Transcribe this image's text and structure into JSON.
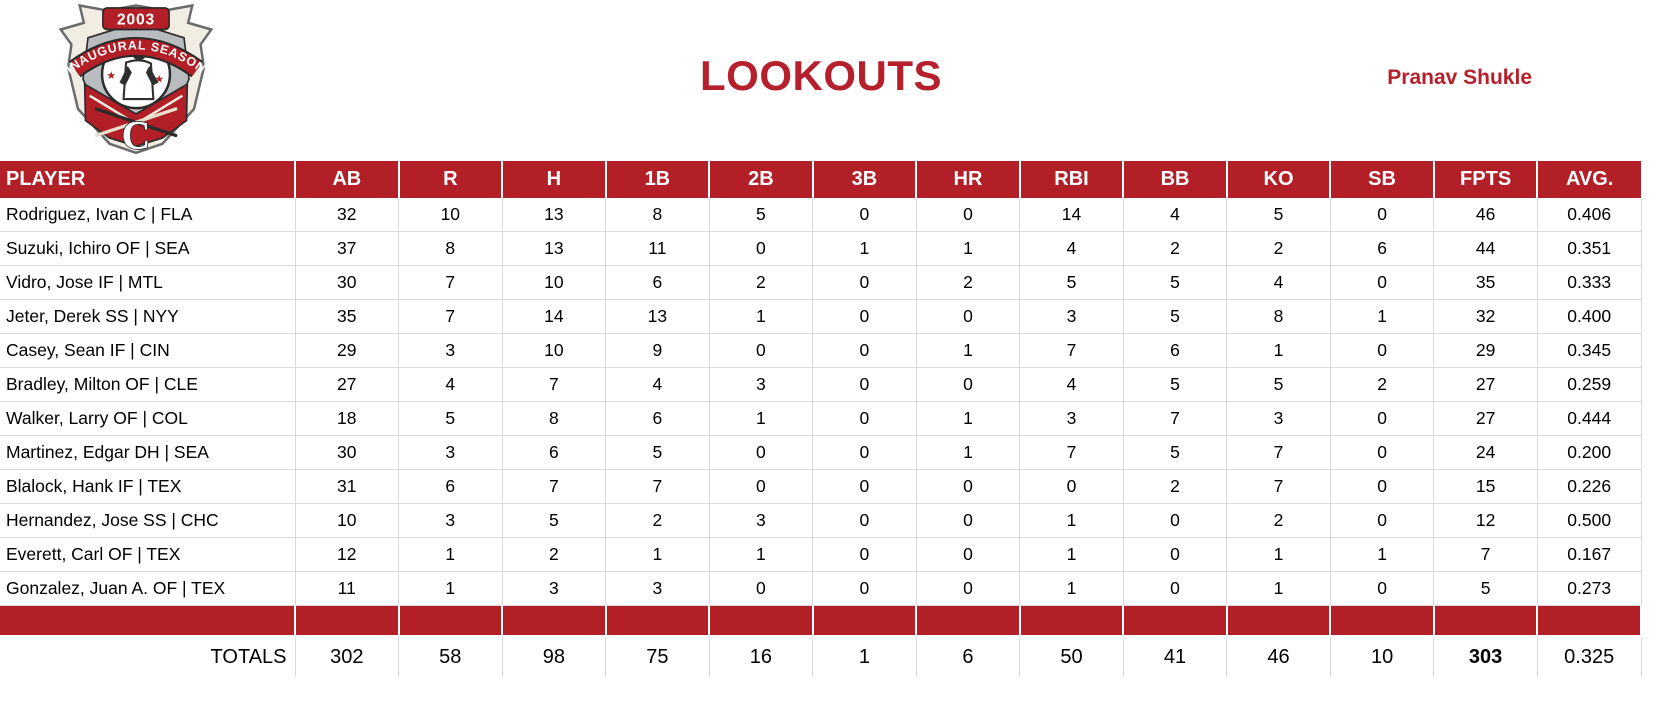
{
  "page": {
    "title": "LOOKOUTS",
    "owner": "Pranav Shukle"
  },
  "logo": {
    "year": "2003",
    "banner": "INAUGURAL SEASON",
    "letter": "C"
  },
  "colors": {
    "cell_red": "#b21f26",
    "title_red": "#b5202c",
    "grid_gray": "#d9d9d9"
  },
  "table": {
    "columns": [
      "PLAYER",
      "AB",
      "R",
      "H",
      "1B",
      "2B",
      "3B",
      "HR",
      "RBI",
      "BB",
      "KO",
      "SB",
      "FPTS",
      "AVG."
    ],
    "rows": [
      {
        "player": "Rodriguez, Ivan C | FLA",
        "stats": [
          "32",
          "10",
          "13",
          "8",
          "5",
          "0",
          "0",
          "14",
          "4",
          "5",
          "0",
          "46",
          "0.406"
        ]
      },
      {
        "player": "Suzuki, Ichiro OF | SEA",
        "stats": [
          "37",
          "8",
          "13",
          "11",
          "0",
          "1",
          "1",
          "4",
          "2",
          "2",
          "6",
          "44",
          "0.351"
        ]
      },
      {
        "player": "Vidro, Jose IF | MTL",
        "stats": [
          "30",
          "7",
          "10",
          "6",
          "2",
          "0",
          "2",
          "5",
          "5",
          "4",
          "0",
          "35",
          "0.333"
        ]
      },
      {
        "player": "Jeter, Derek SS | NYY",
        "stats": [
          "35",
          "7",
          "14",
          "13",
          "1",
          "0",
          "0",
          "3",
          "5",
          "8",
          "1",
          "32",
          "0.400"
        ]
      },
      {
        "player": "Casey, Sean IF | CIN",
        "stats": [
          "29",
          "3",
          "10",
          "9",
          "0",
          "0",
          "1",
          "7",
          "6",
          "1",
          "0",
          "29",
          "0.345"
        ]
      },
      {
        "player": "Bradley, Milton OF | CLE",
        "stats": [
          "27",
          "4",
          "7",
          "4",
          "3",
          "0",
          "0",
          "4",
          "5",
          "5",
          "2",
          "27",
          "0.259"
        ]
      },
      {
        "player": "Walker, Larry OF | COL",
        "stats": [
          "18",
          "5",
          "8",
          "6",
          "1",
          "0",
          "1",
          "3",
          "7",
          "3",
          "0",
          "27",
          "0.444"
        ]
      },
      {
        "player": "Martinez, Edgar DH | SEA",
        "stats": [
          "30",
          "3",
          "6",
          "5",
          "0",
          "0",
          "1",
          "7",
          "5",
          "7",
          "0",
          "24",
          "0.200"
        ]
      },
      {
        "player": "Blalock, Hank IF | TEX",
        "stats": [
          "31",
          "6",
          "7",
          "7",
          "0",
          "0",
          "0",
          "0",
          "2",
          "7",
          "0",
          "15",
          "0.226"
        ]
      },
      {
        "player": "Hernandez, Jose SS | CHC",
        "stats": [
          "10",
          "3",
          "5",
          "2",
          "3",
          "0",
          "0",
          "1",
          "0",
          "2",
          "0",
          "12",
          "0.500"
        ]
      },
      {
        "player": "Everett, Carl OF | TEX",
        "stats": [
          "12",
          "1",
          "2",
          "1",
          "1",
          "0",
          "0",
          "1",
          "0",
          "1",
          "1",
          "7",
          "0.167"
        ]
      },
      {
        "player": "Gonzalez, Juan A. OF | TEX",
        "stats": [
          "11",
          "1",
          "3",
          "3",
          "0",
          "0",
          "0",
          "1",
          "0",
          "1",
          "0",
          "5",
          "0.273"
        ]
      }
    ],
    "totals": {
      "label": "TOTALS",
      "stats": [
        "302",
        "58",
        "98",
        "75",
        "16",
        "1",
        "6",
        "50",
        "41",
        "46",
        "10",
        "303",
        "0.325"
      ]
    }
  }
}
